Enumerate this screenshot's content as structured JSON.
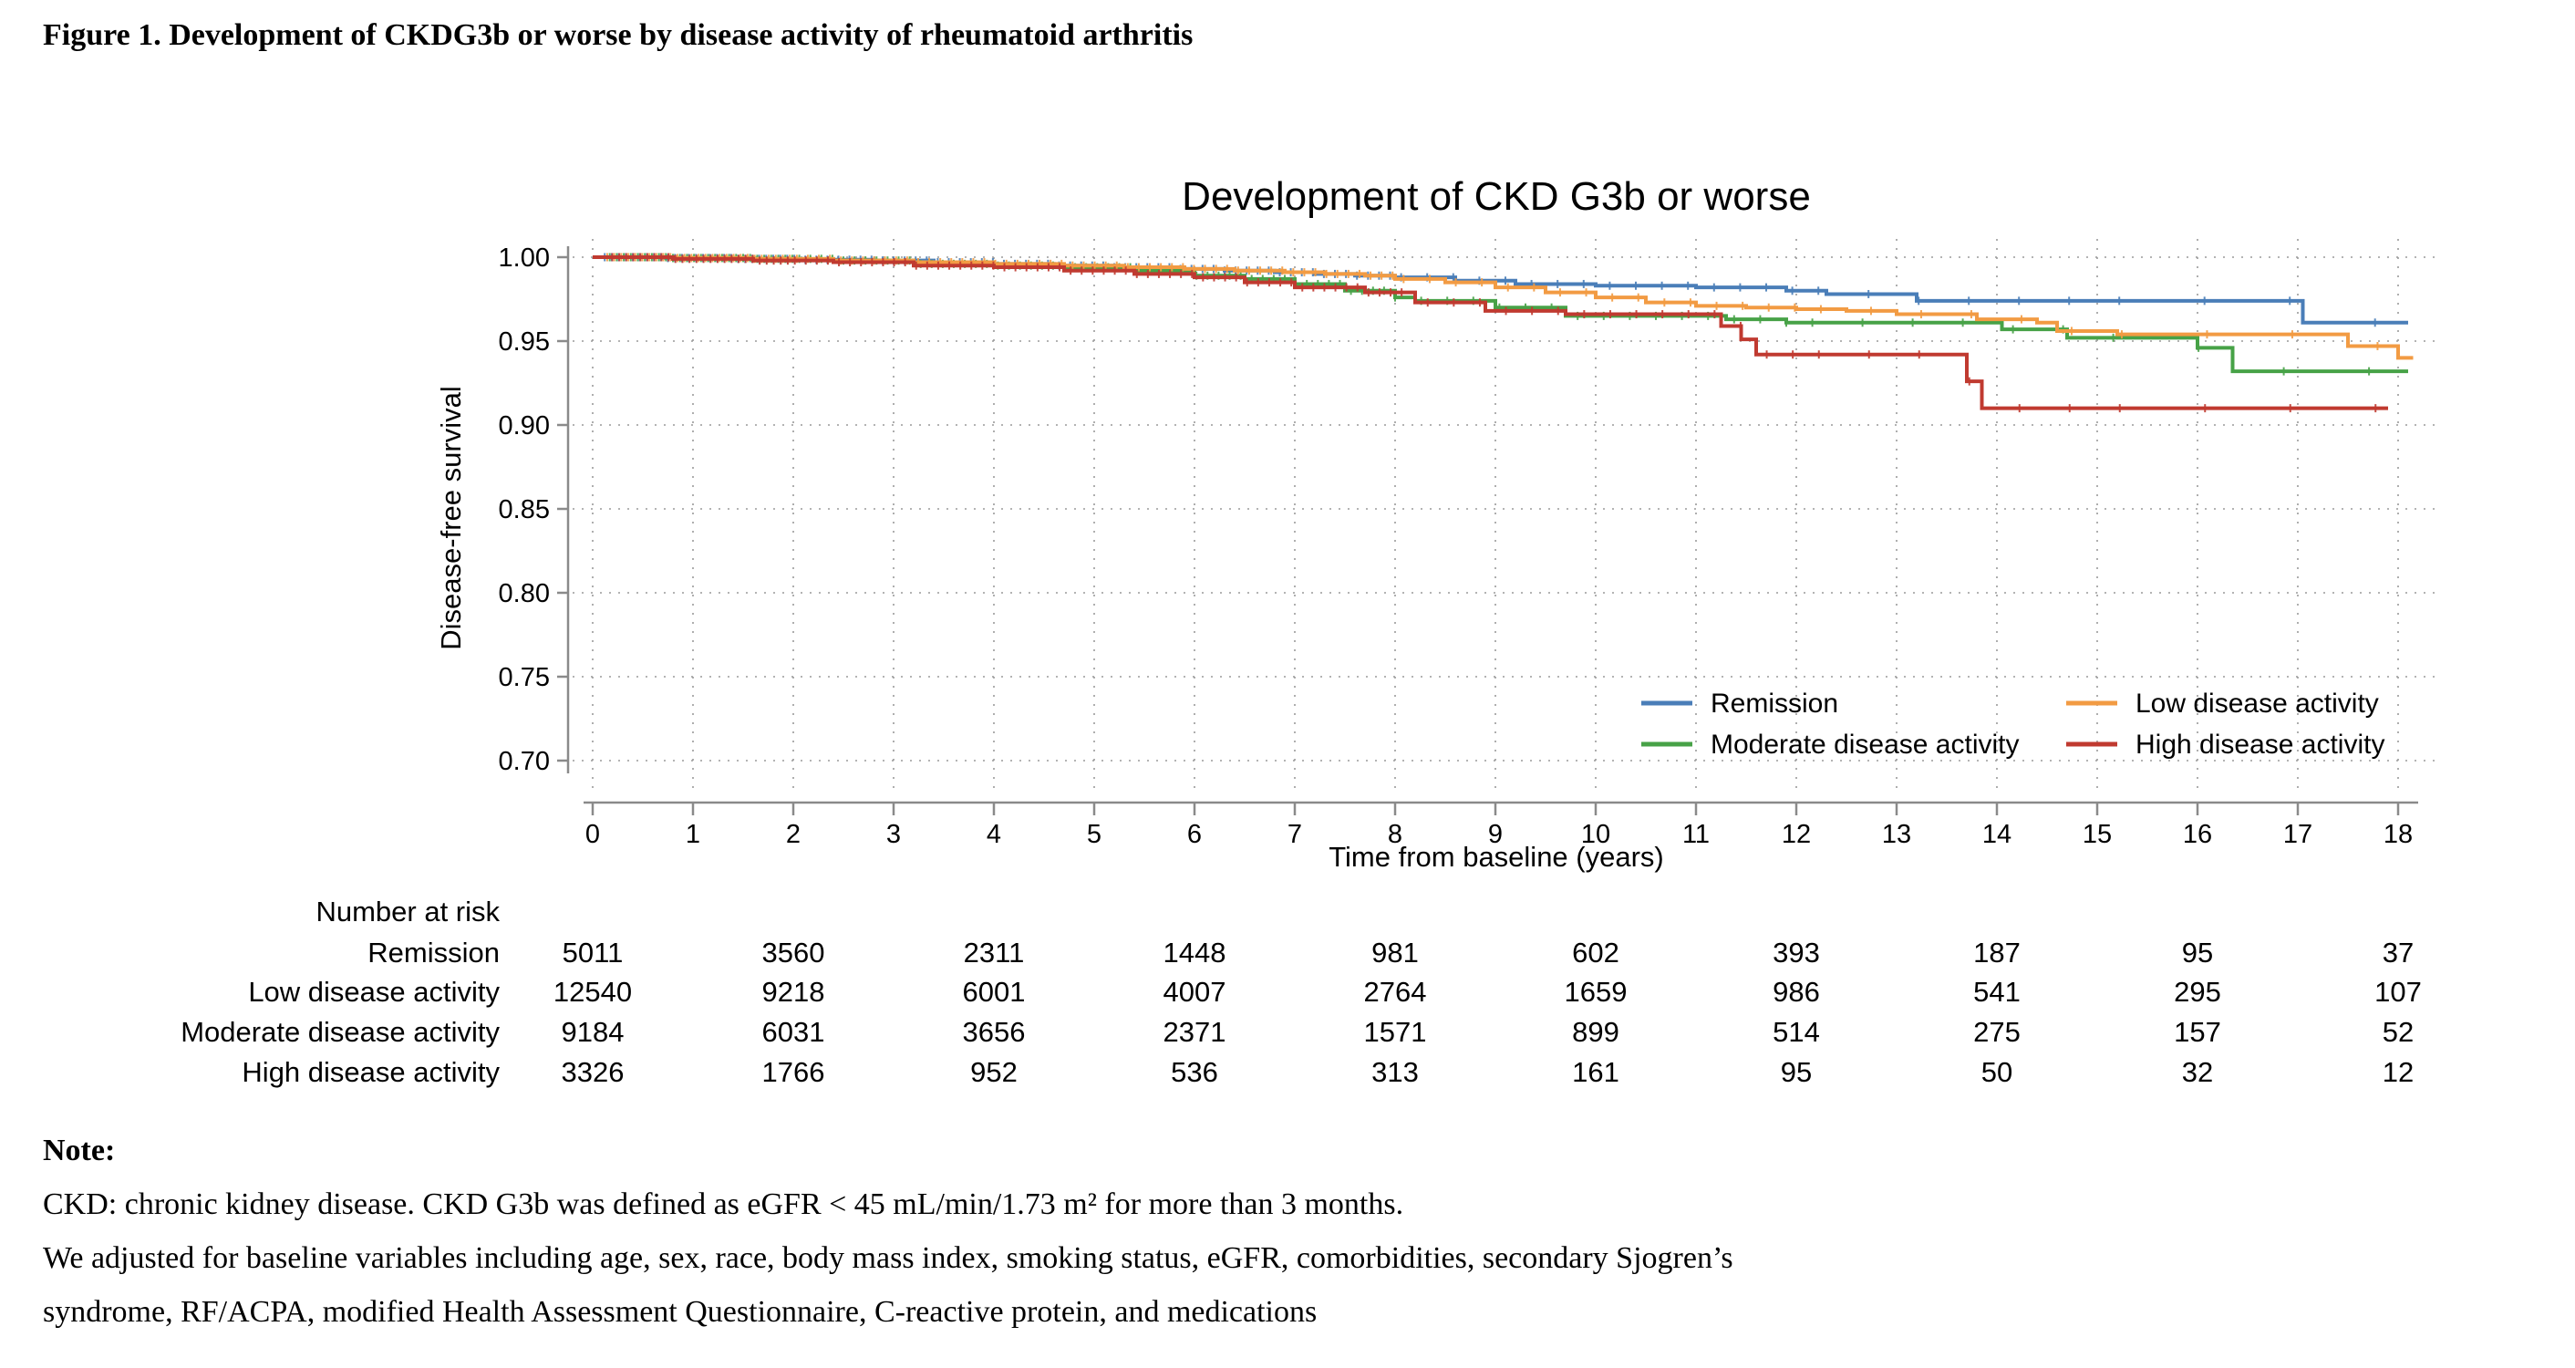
{
  "figure_caption": "Figure 1. Development of CKDG3b or worse by disease activity of rheumatoid arthritis",
  "chart": {
    "title": "Development of CKD G3b or worse",
    "x_axis": {
      "label": "Time from baseline (years)"
    },
    "y_axis": {
      "label": "Disease-free survival"
    }
  },
  "chart_data": {
    "type": "line",
    "subtype": "kaplan-meier-step",
    "title": "Development of CKD G3b or worse",
    "xlabel": "Time from baseline (years)",
    "ylabel": "Disease-free survival",
    "xlim": [
      0,
      18
    ],
    "ylim": [
      0.7,
      1.0
    ],
    "x_ticks": [
      0,
      1,
      2,
      3,
      4,
      5,
      6,
      7,
      8,
      9,
      10,
      11,
      12,
      13,
      14,
      15,
      16,
      17,
      18
    ],
    "y_ticks": [
      "1.00",
      "0.95",
      "0.90",
      "0.85",
      "0.80",
      "0.75",
      "0.70"
    ],
    "grid": "dotted",
    "legend_position": "inside-lower-right",
    "series": [
      {
        "name": "Remission",
        "color": "#4a7eb8",
        "steps": [
          [
            0,
            1.0
          ],
          [
            0.7,
            0.9995
          ],
          [
            1.4,
            0.999
          ],
          [
            2.1,
            0.9985
          ],
          [
            2.8,
            0.998
          ],
          [
            3.4,
            0.997
          ],
          [
            4,
            0.996
          ],
          [
            4.6,
            0.995
          ],
          [
            5.2,
            0.994
          ],
          [
            5.8,
            0.993
          ],
          [
            6.3,
            0.992
          ],
          [
            6.8,
            0.991
          ],
          [
            7.2,
            0.99
          ],
          [
            7.6,
            0.989
          ],
          [
            8,
            0.988
          ],
          [
            8.6,
            0.986
          ],
          [
            9.2,
            0.984
          ],
          [
            10,
            0.983
          ],
          [
            11,
            0.982
          ],
          [
            11.9,
            0.98
          ],
          [
            12.3,
            0.978
          ],
          [
            13.2,
            0.974
          ],
          [
            17.05,
            0.961
          ],
          [
            18.1,
            0.961
          ]
        ]
      },
      {
        "name": "Low disease activity",
        "color": "#f29b43",
        "steps": [
          [
            0,
            1.0
          ],
          [
            0.8,
            0.9995
          ],
          [
            1.6,
            0.999
          ],
          [
            2.4,
            0.998
          ],
          [
            3.2,
            0.997
          ],
          [
            4,
            0.996
          ],
          [
            4.7,
            0.995
          ],
          [
            5.3,
            0.994
          ],
          [
            5.9,
            0.993
          ],
          [
            6.4,
            0.992
          ],
          [
            6.9,
            0.991
          ],
          [
            7.3,
            0.99
          ],
          [
            7.7,
            0.989
          ],
          [
            8,
            0.987
          ],
          [
            8.5,
            0.985
          ],
          [
            9,
            0.982
          ],
          [
            9.5,
            0.979
          ],
          [
            10,
            0.976
          ],
          [
            10.5,
            0.973
          ],
          [
            11,
            0.971
          ],
          [
            11.5,
            0.97
          ],
          [
            12,
            0.969
          ],
          [
            12.5,
            0.968
          ],
          [
            13,
            0.966
          ],
          [
            13.8,
            0.963
          ],
          [
            14.4,
            0.961
          ],
          [
            14.6,
            0.956
          ],
          [
            15.2,
            0.954
          ],
          [
            17.5,
            0.947
          ],
          [
            18,
            0.94
          ],
          [
            18.15,
            0.94
          ]
        ]
      },
      {
        "name": "Moderate disease activity",
        "color": "#47a247",
        "steps": [
          [
            0,
            1.0
          ],
          [
            0.8,
            0.9995
          ],
          [
            1.6,
            0.999
          ],
          [
            2.4,
            0.998
          ],
          [
            3.2,
            0.996
          ],
          [
            4,
            0.995
          ],
          [
            4.7,
            0.994
          ],
          [
            5.4,
            0.992
          ],
          [
            6,
            0.989
          ],
          [
            6.5,
            0.987
          ],
          [
            7,
            0.984
          ],
          [
            7.5,
            0.98
          ],
          [
            8,
            0.976
          ],
          [
            8.2,
            0.974
          ],
          [
            9,
            0.97
          ],
          [
            9.7,
            0.965
          ],
          [
            11.3,
            0.963
          ],
          [
            11.9,
            0.961
          ],
          [
            14.05,
            0.957
          ],
          [
            14.7,
            0.952
          ],
          [
            16,
            0.946
          ],
          [
            16.35,
            0.932
          ],
          [
            18.1,
            0.932
          ]
        ]
      },
      {
        "name": "High disease activity",
        "color": "#c03a30",
        "steps": [
          [
            0,
            1.0
          ],
          [
            0.8,
            0.999
          ],
          [
            1.6,
            0.998
          ],
          [
            2.4,
            0.997
          ],
          [
            3.2,
            0.995
          ],
          [
            4,
            0.994
          ],
          [
            4.7,
            0.992
          ],
          [
            5.4,
            0.99
          ],
          [
            6,
            0.988
          ],
          [
            6.5,
            0.985
          ],
          [
            7,
            0.982
          ],
          [
            7.7,
            0.979
          ],
          [
            8.2,
            0.973
          ],
          [
            8.9,
            0.968
          ],
          [
            9.7,
            0.966
          ],
          [
            11.25,
            0.959
          ],
          [
            11.45,
            0.951
          ],
          [
            11.6,
            0.942
          ],
          [
            13.7,
            0.926
          ],
          [
            13.85,
            0.91
          ],
          [
            17.9,
            0.91
          ]
        ]
      }
    ]
  },
  "legend": [
    {
      "label": "Remission",
      "color": "#4a7eb8"
    },
    {
      "label": "Low disease activity",
      "color": "#f29b43"
    },
    {
      "label": "Moderate disease activity",
      "color": "#47a247"
    },
    {
      "label": "High disease activity",
      "color": "#c03a30"
    }
  ],
  "risk_table": {
    "title": "Number at risk",
    "time_points": [
      0,
      2,
      4,
      6,
      8,
      10,
      12,
      14,
      16,
      18
    ],
    "rows": [
      {
        "label": "Remission",
        "values": [
          5011,
          3560,
          2311,
          1448,
          981,
          602,
          393,
          187,
          95,
          37
        ]
      },
      {
        "label": "Low disease activity",
        "values": [
          12540,
          9218,
          6001,
          4007,
          2764,
          1659,
          986,
          541,
          295,
          107
        ]
      },
      {
        "label": "Moderate disease activity",
        "values": [
          9184,
          6031,
          3656,
          2371,
          1571,
          899,
          514,
          275,
          157,
          52
        ]
      },
      {
        "label": "High disease activity",
        "values": [
          3326,
          1766,
          952,
          536,
          313,
          161,
          95,
          50,
          32,
          12
        ]
      }
    ]
  },
  "note": {
    "heading": "Note:",
    "lines": [
      "CKD: chronic kidney disease. CKD G3b was defined as eGFR < 45 mL/min/1.73 m² for more than 3 months.",
      "We adjusted for baseline variables including age, sex, race, body mass index, smoking status, eGFR, comorbidities, secondary Sjogren’s",
      "syndrome, RF/ACPA, modified Health Assessment Questionnaire, C-reactive protein, and medications"
    ]
  },
  "colors": {
    "axis": "#8a8a8a",
    "grid": "#9a9a9a",
    "text": "#000000",
    "background": "#ffffff"
  }
}
